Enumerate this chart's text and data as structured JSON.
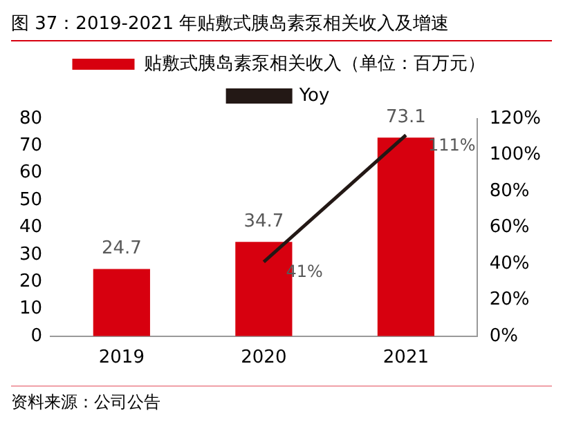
{
  "chart_data": {
    "type": "bar",
    "title": "图 37：2019-2021 年贴敷式胰岛素泵相关收入及增速",
    "categories": [
      "2019",
      "2020",
      "2021"
    ],
    "series": [
      {
        "name": "贴敷式胰岛素泵相关收入（单位：百万元）",
        "color": "#d7000f",
        "values": [
          24.7,
          34.7,
          73.1
        ],
        "value_labels": [
          "24.7",
          "34.7",
          "73.1"
        ]
      },
      {
        "name": "Yoy",
        "type": "line",
        "axis": "y2",
        "color": "#231815",
        "values": [
          null,
          41,
          111
        ],
        "value_labels": [
          null,
          "41%",
          "111%"
        ]
      }
    ],
    "ylim": [
      0,
      80
    ],
    "yticks": [
      0,
      10,
      20,
      30,
      40,
      50,
      60,
      70,
      80
    ],
    "y2lim": [
      0,
      120
    ],
    "y2ticks": [
      {
        "value": 0,
        "label": "0%"
      },
      {
        "value": 20,
        "label": "20%"
      },
      {
        "value": 40,
        "label": "40%"
      },
      {
        "value": 60,
        "label": "60%"
      },
      {
        "value": 80,
        "label": "80%"
      },
      {
        "value": 100,
        "label": "100%"
      },
      {
        "value": 120,
        "label": "120%"
      }
    ],
    "grid": false,
    "legend": "top",
    "marker": "none",
    "line_style": "solid",
    "annotations": [
      "资料来源：公司公告"
    ]
  }
}
